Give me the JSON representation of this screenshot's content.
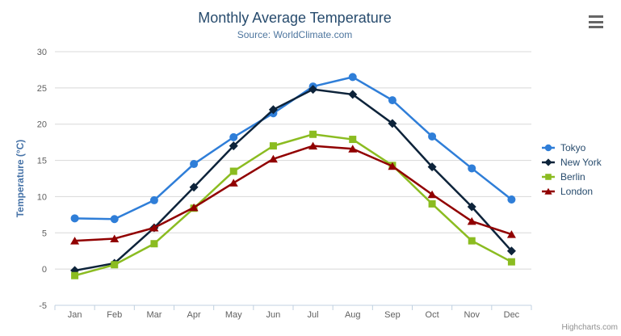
{
  "chart": {
    "title": "Monthly Average Temperature",
    "subtitle": "Source: WorldClimate.com",
    "credit": "Highcharts.com",
    "menu_icon": "hamburger-icon"
  },
  "chart_data": {
    "type": "line",
    "title": "Monthly Average Temperature",
    "subtitle": "Source: WorldClimate.com",
    "categories": [
      "Jan",
      "Feb",
      "Mar",
      "Apr",
      "May",
      "Jun",
      "Jul",
      "Aug",
      "Sep",
      "Oct",
      "Nov",
      "Dec"
    ],
    "series": [
      {
        "name": "Tokyo",
        "color": "#2f7ed8",
        "marker": "circle",
        "values": [
          7.0,
          6.9,
          9.5,
          14.5,
          18.2,
          21.5,
          25.2,
          26.5,
          23.3,
          18.3,
          13.9,
          9.6
        ]
      },
      {
        "name": "New York",
        "color": "#0d233a",
        "marker": "diamond",
        "values": [
          -0.2,
          0.8,
          5.7,
          11.3,
          17.0,
          22.0,
          24.8,
          24.1,
          20.1,
          14.1,
          8.6,
          2.5
        ]
      },
      {
        "name": "Berlin",
        "color": "#8bbc21",
        "marker": "square",
        "values": [
          -0.9,
          0.6,
          3.5,
          8.4,
          13.5,
          17.0,
          18.6,
          17.9,
          14.3,
          9.0,
          3.9,
          1.0
        ]
      },
      {
        "name": "London",
        "color": "#910000",
        "marker": "triangle",
        "values": [
          3.9,
          4.2,
          5.7,
          8.5,
          11.9,
          15.2,
          17.0,
          16.6,
          14.2,
          10.3,
          6.6,
          4.8
        ]
      }
    ],
    "xlabel": "",
    "ylabel": "Temperature (°C)",
    "ylim": [
      -5,
      30
    ],
    "ytick_step": 5,
    "grid": true,
    "legend_position": "right",
    "colors": {
      "grid": "#D8D8D8",
      "axis_line": "#C0D0E0",
      "tick_label": "#606060",
      "title": "#274b6d",
      "subtitle": "#4d759e",
      "yaxis_title": "#4572A7",
      "legend_text": "#274b6d",
      "credit": "#909090"
    }
  }
}
